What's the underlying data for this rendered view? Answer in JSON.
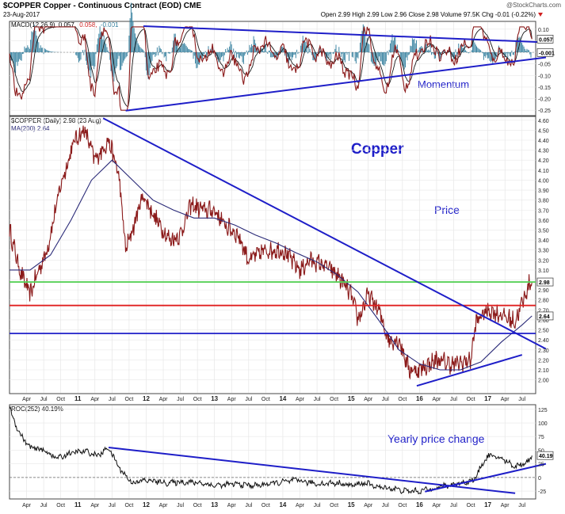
{
  "header": {
    "symbol_line": "$COPPER Copper - Continuous Contract (EOD) CME",
    "date": "23-Aug-2017",
    "source": "@StockCharts.com",
    "quote": "Open 2.99 High 2.99 Low 2.96 Close 2.98 Volume 97.5K Chg -0.01 (-0.22%)"
  },
  "chart_data": [
    {
      "type": "line",
      "panel": "macd",
      "legend": [
        "MACD(12,26,9)",
        "0.057,",
        "0.058,",
        "-0.001"
      ],
      "annotation": "Momentum",
      "y_ticks": [
        0.1,
        0.05,
        0.0,
        -0.05,
        -0.1,
        -0.15,
        -0.2,
        -0.25
      ],
      "ylim": [
        -0.27,
        0.13
      ],
      "value_labels": [
        "0.057",
        "-0.001"
      ],
      "colors": {
        "macd": "#8b1a1a",
        "signal": "#1a1a1a",
        "histogram": "#2b7a9a",
        "trendline": "#1e1ec8"
      },
      "trendlines": [
        {
          "points": [
            [
              2011.96,
              0.113
            ],
            [
              2017.85,
              0.043
            ]
          ]
        },
        {
          "points": [
            [
              2011.7,
              -0.252
            ],
            [
              2017.85,
              -0.022
            ]
          ]
        }
      ]
    },
    {
      "type": "line",
      "panel": "price",
      "legend": [
        "$COPPER (Daily) 2.98 (23 Aug)",
        "MA(200) 2.64"
      ],
      "annotations": [
        "Copper",
        "Price"
      ],
      "y_ticks": [
        4.6,
        4.5,
        4.4,
        4.3,
        4.2,
        4.1,
        4.0,
        3.9,
        3.8,
        3.7,
        3.6,
        3.5,
        3.4,
        3.3,
        3.2,
        3.1,
        3.0,
        2.9,
        2.8,
        2.7,
        2.6,
        2.5,
        2.4,
        2.3,
        2.2,
        2.1,
        2.0
      ],
      "ylim": [
        1.87,
        4.63
      ],
      "value_labels": [
        "2.98",
        "2.64"
      ],
      "horizontal_lines": [
        {
          "y": 2.98,
          "color": "#58d058"
        },
        {
          "y": 2.745,
          "color": "#e02020"
        },
        {
          "y": 2.465,
          "color": "#1e1ec8"
        }
      ],
      "trendlines": [
        {
          "points": [
            [
              2011.37,
              4.62
            ],
            [
              2017.85,
              2.31
            ]
          ]
        },
        {
          "points": [
            [
              2015.96,
              1.94
            ],
            [
              2017.5,
              2.25
            ]
          ]
        }
      ],
      "series": [
        {
          "role": "price",
          "color": "#8b1a1a",
          "x": [
            2010.0,
            2010.15,
            2010.3,
            2010.4,
            2010.55,
            2010.75,
            2010.95,
            2011.1,
            2011.25,
            2011.45,
            2011.6,
            2011.7,
            2011.8,
            2011.95,
            2012.15,
            2012.35,
            2012.5,
            2012.65,
            2012.85,
            2013.0,
            2013.15,
            2013.35,
            2013.5,
            2013.75,
            2014.0,
            2014.25,
            2014.4,
            2014.6,
            2014.8,
            2015.0,
            2015.1,
            2015.25,
            2015.4,
            2015.55,
            2015.7,
            2015.85,
            2016.0,
            2016.25,
            2016.5,
            2016.75,
            2016.82,
            2016.87,
            2017.0,
            2017.2,
            2017.4,
            2017.6,
            2017.645
          ],
          "y": [
            3.5,
            3.1,
            2.85,
            3.05,
            3.3,
            3.95,
            4.4,
            4.5,
            4.2,
            4.4,
            4.05,
            3.3,
            3.5,
            3.85,
            3.6,
            3.4,
            3.45,
            3.75,
            3.7,
            3.7,
            3.55,
            3.45,
            3.2,
            3.3,
            3.3,
            3.1,
            3.2,
            3.15,
            3.05,
            2.85,
            2.6,
            2.85,
            2.7,
            2.4,
            2.4,
            2.1,
            2.1,
            2.2,
            2.15,
            2.2,
            2.55,
            2.62,
            2.7,
            2.65,
            2.58,
            2.95,
            2.98
          ]
        },
        {
          "role": "ma200",
          "color": "#2a2a78",
          "x": [
            2010.0,
            2010.3,
            2010.6,
            2010.9,
            2011.2,
            2011.5,
            2011.8,
            2012.1,
            2012.4,
            2012.7,
            2013.0,
            2013.3,
            2013.6,
            2013.9,
            2014.2,
            2014.5,
            2014.8,
            2015.1,
            2015.4,
            2015.7,
            2016.0,
            2016.3,
            2016.6,
            2016.9,
            2017.2,
            2017.5,
            2017.645
          ],
          "y": [
            3.1,
            3.1,
            3.25,
            3.6,
            4.0,
            4.2,
            4.0,
            3.8,
            3.7,
            3.62,
            3.62,
            3.55,
            3.45,
            3.37,
            3.27,
            3.18,
            3.05,
            2.88,
            2.6,
            2.3,
            2.16,
            2.1,
            2.1,
            2.18,
            2.38,
            2.55,
            2.64
          ]
        }
      ]
    },
    {
      "type": "line",
      "panel": "roc",
      "legend": [
        "ROC(252) 40.19%"
      ],
      "annotation": "Yearly price change",
      "y_ticks": [
        125,
        100,
        75,
        50,
        25,
        0,
        -25
      ],
      "ylim": [
        -38,
        132
      ],
      "value_labels": [
        "40.19"
      ],
      "x_tick_labels": [
        {
          "label": "Apr",
          "x": 2010.25
        },
        {
          "label": "Jul",
          "x": 2010.5
        },
        {
          "label": "Oct",
          "x": 2010.75
        },
        {
          "label": "11",
          "x": 2011.0
        },
        {
          "label": "Apr",
          "x": 2011.25
        },
        {
          "label": "Jul",
          "x": 2011.5
        },
        {
          "label": "Oct",
          "x": 2011.75
        },
        {
          "label": "12",
          "x": 2012.0
        },
        {
          "label": "Apr",
          "x": 2012.25
        },
        {
          "label": "Jul",
          "x": 2012.5
        },
        {
          "label": "Oct",
          "x": 2012.75
        },
        {
          "label": "13",
          "x": 2013.0
        },
        {
          "label": "Apr",
          "x": 2013.25
        },
        {
          "label": "Jul",
          "x": 2013.5
        },
        {
          "label": "Oct",
          "x": 2013.75
        },
        {
          "label": "14",
          "x": 2014.0
        },
        {
          "label": "Apr",
          "x": 2014.25
        },
        {
          "label": "Jul",
          "x": 2014.5
        },
        {
          "label": "Oct",
          "x": 2014.75
        },
        {
          "label": "15",
          "x": 2015.0
        },
        {
          "label": "Apr",
          "x": 2015.25
        },
        {
          "label": "Jul",
          "x": 2015.5
        },
        {
          "label": "Oct",
          "x": 2015.75
        },
        {
          "label": "16",
          "x": 2016.0
        },
        {
          "label": "Apr",
          "x": 2016.25
        },
        {
          "label": "Jul",
          "x": 2016.5
        },
        {
          "label": "Oct",
          "x": 2016.75
        },
        {
          "label": "17",
          "x": 2017.0
        },
        {
          "label": "Apr",
          "x": 2017.25
        },
        {
          "label": "Jul",
          "x": 2017.5
        }
      ],
      "trendlines": [
        {
          "points": [
            [
              2011.45,
              55
            ],
            [
              2017.4,
              -29
            ]
          ]
        },
        {
          "points": [
            [
              2016.08,
              -26
            ],
            [
              2017.85,
              25
            ]
          ]
        }
      ],
      "series": [
        {
          "role": "roc",
          "color": "#111111",
          "x": [
            2010.0,
            2010.05,
            2010.15,
            2010.3,
            2010.5,
            2010.7,
            2010.9,
            2011.1,
            2011.3,
            2011.45,
            2011.55,
            2011.65,
            2011.8,
            2012.0,
            2012.3,
            2012.55,
            2012.8,
            2013.0,
            2013.3,
            2013.6,
            2013.9,
            2014.2,
            2014.5,
            2014.8,
            2015.0,
            2015.2,
            2015.4,
            2015.6,
            2015.8,
            2016.0,
            2016.2,
            2016.4,
            2016.6,
            2016.8,
            2016.9,
            2017.0,
            2017.2,
            2017.4,
            2017.6,
            2017.645
          ],
          "y": [
            128,
            110,
            80,
            55,
            50,
            35,
            45,
            48,
            40,
            55,
            30,
            10,
            -10,
            -5,
            -10,
            -8,
            -10,
            -15,
            -12,
            -15,
            -10,
            -5,
            -12,
            -10,
            -15,
            -10,
            -18,
            -20,
            -25,
            -25,
            -20,
            -15,
            -10,
            -5,
            20,
            40,
            35,
            20,
            30,
            40
          ]
        }
      ]
    }
  ]
}
